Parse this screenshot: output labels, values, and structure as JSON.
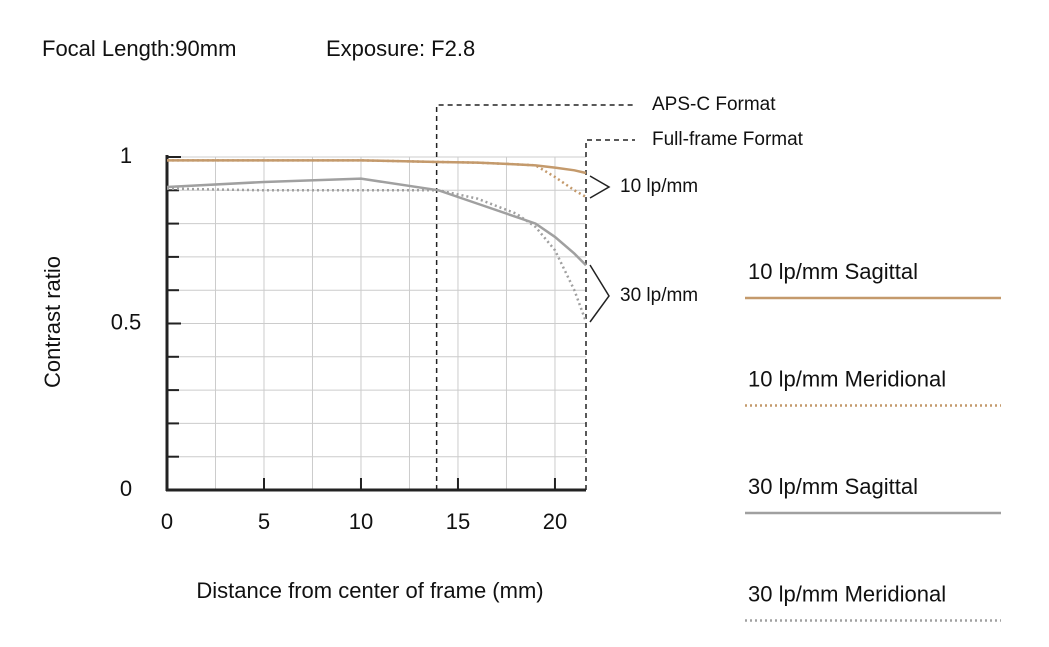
{
  "chart_data": {
    "type": "line",
    "focal_length": "Focal Length:90mm",
    "exposure": "Exposure: F2.8",
    "x_label": "Distance from center of frame (mm)",
    "y_label": "Contrast ratio",
    "xlim": [
      0,
      21.6
    ],
    "ylim": [
      0,
      1
    ],
    "xticks": [
      0,
      5,
      10,
      15,
      20
    ],
    "yticks": [
      0,
      0.5,
      1
    ],
    "x_minor_ticks": [
      2.5,
      7.5,
      12.5,
      17.5
    ],
    "y_minor_ticks": [
      0.1,
      0.2,
      0.3,
      0.4,
      0.6,
      0.7,
      0.8,
      0.9
    ],
    "grid": true,
    "legend": "right",
    "x": [
      0,
      5,
      10,
      14,
      16,
      18,
      19,
      20,
      21,
      21.6
    ],
    "series": [
      {
        "name": "10 lp/mm Sagittal",
        "color": "#c49a6c",
        "style": "solid",
        "values": [
          0.99,
          0.99,
          0.99,
          0.985,
          0.983,
          0.978,
          0.975,
          0.968,
          0.96,
          0.952
        ]
      },
      {
        "name": "10 lp/mm Meridional",
        "color": "#c49a6c",
        "style": "dotted",
        "values": [
          0.99,
          0.99,
          0.99,
          0.985,
          0.983,
          0.978,
          0.975,
          0.94,
          0.9,
          0.88
        ]
      },
      {
        "name": "30 lp/mm Sagittal",
        "color": "#a0a0a0",
        "style": "solid",
        "values": [
          0.91,
          0.925,
          0.935,
          0.9,
          0.86,
          0.82,
          0.8,
          0.76,
          0.71,
          0.675
        ]
      },
      {
        "name": "30 lp/mm Meridional",
        "color": "#a0a0a0",
        "style": "dotted",
        "values": [
          0.905,
          0.9,
          0.9,
          0.9,
          0.875,
          0.83,
          0.79,
          0.72,
          0.6,
          0.505
        ]
      }
    ],
    "formats": [
      {
        "name": "APS-C Format",
        "x": 13.9
      },
      {
        "name": "Full-frame Format",
        "x": 21.6
      }
    ],
    "groups": [
      "10 lp/mm",
      "30 lp/mm"
    ]
  }
}
